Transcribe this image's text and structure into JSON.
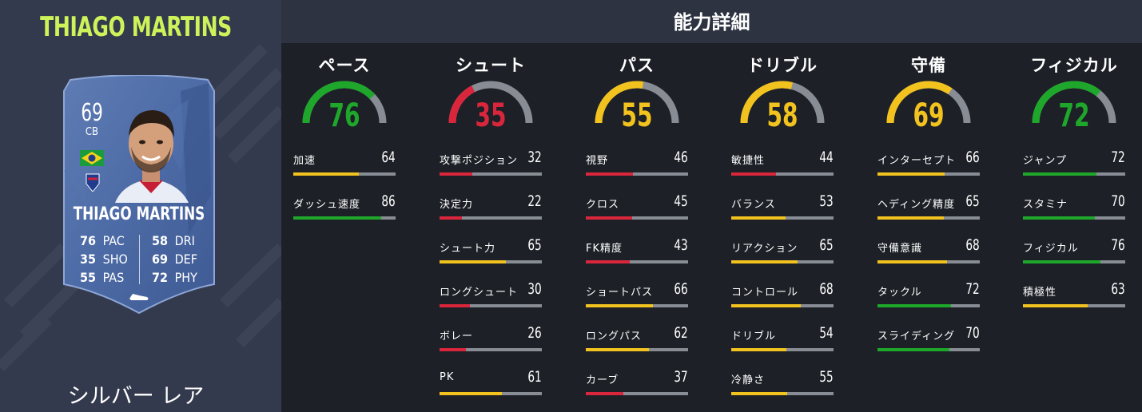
{
  "player": {
    "name": "THIAGO MARTINS",
    "overall": "69",
    "position": "CB",
    "card_name": "THIAGO MARTINS",
    "card_stats": [
      {
        "value": "76",
        "label": "PAC"
      },
      {
        "value": "35",
        "label": "SHO"
      },
      {
        "value": "55",
        "label": "PAS"
      },
      {
        "value": "58",
        "label": "DRI"
      },
      {
        "value": "69",
        "label": "DEF"
      },
      {
        "value": "72",
        "label": "PHY"
      }
    ],
    "rarity": "シルバー レア"
  },
  "header": {
    "title": "能力詳細"
  },
  "colors": {
    "high": "#1ea72a",
    "mid": "#f2c21e",
    "low": "#d9263c",
    "name_accent": "#cdf25a",
    "track": "#888d95"
  },
  "categories": [
    {
      "name": "ペース",
      "value": 76,
      "display": "76",
      "stats": [
        {
          "name": "加速",
          "value": 64
        },
        {
          "name": "ダッシュ速度",
          "value": 86
        }
      ]
    },
    {
      "name": "シュート",
      "value": 35,
      "display": "35",
      "stats": [
        {
          "name": "攻撃ポジション",
          "value": 32
        },
        {
          "name": "決定力",
          "value": 22
        },
        {
          "name": "シュート力",
          "value": 65
        },
        {
          "name": "ロングシュート",
          "value": 30
        },
        {
          "name": "ボレー",
          "value": 26
        },
        {
          "name": "PK",
          "value": 61
        }
      ]
    },
    {
      "name": "パス",
      "value": 55,
      "display": "55",
      "stats": [
        {
          "name": "視野",
          "value": 46
        },
        {
          "name": "クロス",
          "value": 45
        },
        {
          "name": "FK精度",
          "value": 43
        },
        {
          "name": "ショートパス",
          "value": 66
        },
        {
          "name": "ロングパス",
          "value": 62
        },
        {
          "name": "カーブ",
          "value": 37
        }
      ]
    },
    {
      "name": "ドリブル",
      "value": 58,
      "display": "58",
      "stats": [
        {
          "name": "敏捷性",
          "value": 44
        },
        {
          "name": "バランス",
          "value": 53
        },
        {
          "name": "リアクション",
          "value": 65
        },
        {
          "name": "コントロール",
          "value": 68
        },
        {
          "name": "ドリブル",
          "value": 54
        },
        {
          "name": "冷静さ",
          "value": 55
        }
      ]
    },
    {
      "name": "守備",
      "value": 69,
      "display": "69",
      "stats": [
        {
          "name": "インターセプト",
          "value": 66
        },
        {
          "name": "ヘディング精度",
          "value": 65
        },
        {
          "name": "守備意識",
          "value": 68
        },
        {
          "name": "タックル",
          "value": 72
        },
        {
          "name": "スライディング",
          "value": 70
        }
      ]
    },
    {
      "name": "フィジカル",
      "value": 72,
      "display": "72",
      "stats": [
        {
          "name": "ジャンプ",
          "value": 72
        },
        {
          "name": "スタミナ",
          "value": 70
        },
        {
          "name": "フィジカル",
          "value": 76
        },
        {
          "name": "積極性",
          "value": 63
        }
      ]
    }
  ]
}
